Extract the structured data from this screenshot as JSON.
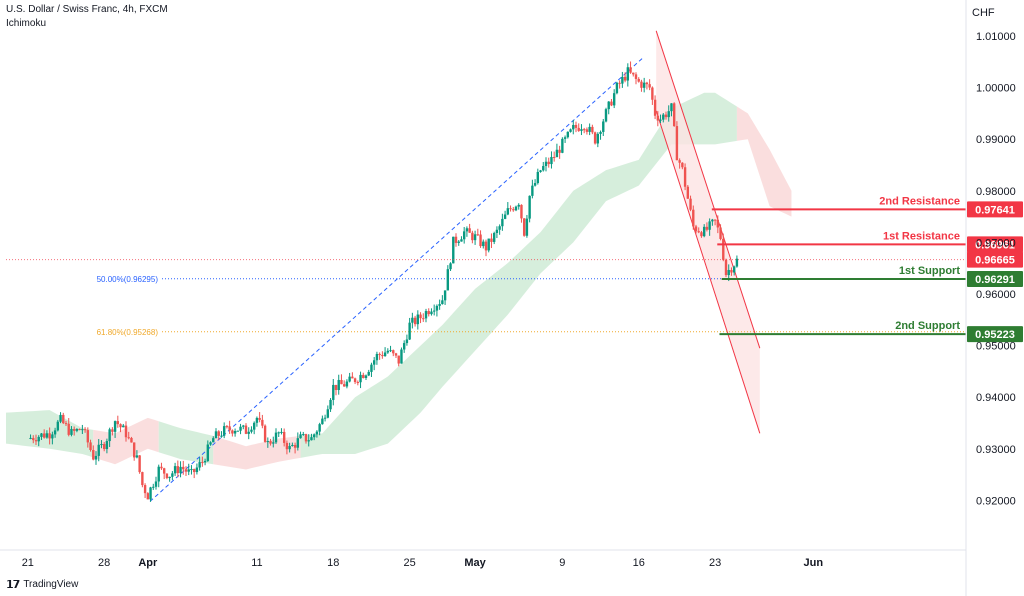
{
  "header": {
    "symbol_line": "U.S. Dollar / Swiss Franc, 4h, FXCM",
    "indicator": "Ichimoku"
  },
  "brand": {
    "logo_text": "TradingView",
    "logo_icon": "tradingview-logo-icon"
  },
  "colors": {
    "candle_up": "#26a69a",
    "candle_down": "#ef5350",
    "candle_up_bright": "#089981",
    "cloud_green": "#d1ecd8",
    "cloud_red": "#fadada",
    "resistance": "#f23645",
    "support": "#2e7d32",
    "fib_50": "#2962ff",
    "fib_618": "#f0a92b",
    "channel": "#f23645",
    "channel_fill": "#fde4e4",
    "trendline": "#2962ff"
  },
  "chart_data": {
    "type": "candlestick",
    "axis_currency": "CHF",
    "ylim": [
      0.912,
      1.016
    ],
    "y_ticks": [
      "1.01000",
      "1.00000",
      "0.99000",
      "0.98000",
      "0.97000",
      "0.96000",
      "0.95000",
      "0.94000",
      "0.93000",
      "0.92000"
    ],
    "y_tick_values": [
      1.01,
      1.0,
      0.99,
      0.98,
      0.97,
      0.96,
      0.95,
      0.94,
      0.93,
      0.92
    ],
    "x_range_days": [
      -2.0,
      86.0
    ],
    "x_ticks": [
      {
        "label": "21",
        "day": 0
      },
      {
        "label": "28",
        "day": 7
      },
      {
        "label": "Apr",
        "day": 11
      },
      {
        "label": "11",
        "day": 21
      },
      {
        "label": "18",
        "day": 28
      },
      {
        "label": "25",
        "day": 35
      },
      {
        "label": "May",
        "day": 41
      },
      {
        "label": "9",
        "day": 49
      },
      {
        "label": "16",
        "day": 56
      },
      {
        "label": "23",
        "day": 63
      },
      {
        "label": "Jun",
        "day": 72
      }
    ],
    "price_path": [
      [
        0,
        0.932
      ],
      [
        2,
        0.933
      ],
      [
        3,
        0.9355
      ],
      [
        4,
        0.933
      ],
      [
        5,
        0.934
      ],
      [
        6,
        0.9285
      ],
      [
        7,
        0.931
      ],
      [
        8,
        0.9355
      ],
      [
        9,
        0.933
      ],
      [
        10,
        0.928
      ],
      [
        10.5,
        0.923
      ],
      [
        11,
        0.921
      ],
      [
        12,
        0.926
      ],
      [
        13,
        0.925
      ],
      [
        14,
        0.9265
      ],
      [
        15,
        0.925
      ],
      [
        16,
        0.9275
      ],
      [
        17,
        0.932
      ],
      [
        18,
        0.9335
      ],
      [
        19,
        0.934
      ],
      [
        20,
        0.9335
      ],
      [
        21,
        0.936
      ],
      [
        22,
        0.931
      ],
      [
        23,
        0.933
      ],
      [
        24,
        0.93
      ],
      [
        25,
        0.932
      ],
      [
        26,
        0.932
      ],
      [
        27,
        0.9355
      ],
      [
        28,
        0.942
      ],
      [
        29,
        0.9425
      ],
      [
        30,
        0.9435
      ],
      [
        31,
        0.945
      ],
      [
        32,
        0.948
      ],
      [
        33,
        0.949
      ],
      [
        34,
        0.947
      ],
      [
        35,
        0.954
      ],
      [
        36,
        0.9555
      ],
      [
        37,
        0.9575
      ],
      [
        38,
        0.959
      ],
      [
        38.5,
        0.964
      ],
      [
        39,
        0.97
      ],
      [
        40,
        0.972
      ],
      [
        41,
        0.971
      ],
      [
        42,
        0.969
      ],
      [
        43,
        0.972
      ],
      [
        44,
        0.976
      ],
      [
        45,
        0.978
      ],
      [
        45.5,
        0.972
      ],
      [
        46,
        0.979
      ],
      [
        47,
        0.984
      ],
      [
        48,
        0.986
      ],
      [
        49,
        0.989
      ],
      [
        50,
        0.992
      ],
      [
        51,
        0.993
      ],
      [
        52,
        0.99
      ],
      [
        53,
        0.995
      ],
      [
        54,
        1.0
      ],
      [
        55,
        1.003
      ],
      [
        56,
        1.001
      ],
      [
        57,
        1.0
      ],
      [
        57.5,
        0.995
      ],
      [
        58,
        0.994
      ],
      [
        59,
        0.996
      ],
      [
        59.5,
        0.987
      ],
      [
        60,
        0.984
      ],
      [
        61,
        0.973
      ],
      [
        62,
        0.972
      ],
      [
        63,
        0.974
      ],
      [
        63.5,
        0.971
      ],
      [
        64,
        0.964
      ],
      [
        65,
        0.9665
      ]
    ],
    "ichimoku_cloud": {
      "upper": [
        [
          -2,
          0.937
        ],
        [
          2,
          0.9375
        ],
        [
          5,
          0.934
        ],
        [
          8,
          0.933
        ],
        [
          11,
          0.936
        ],
        [
          14,
          0.934
        ],
        [
          17,
          0.9325
        ],
        [
          20,
          0.9305
        ],
        [
          23,
          0.932
        ],
        [
          27,
          0.933
        ],
        [
          30,
          0.94
        ],
        [
          33,
          0.944
        ],
        [
          36,
          0.95
        ],
        [
          38,
          0.954
        ],
        [
          41,
          0.961
        ],
        [
          44,
          0.966
        ],
        [
          47,
          0.972
        ],
        [
          50,
          0.98
        ],
        [
          53,
          0.984
        ],
        [
          56,
          0.986
        ],
        [
          59,
          0.996
        ],
        [
          62,
          0.999
        ],
        [
          63,
          0.999
        ],
        [
          66,
          0.995
        ],
        [
          68,
          0.988
        ],
        [
          70,
          0.98
        ]
      ],
      "lower": [
        [
          -2,
          0.931
        ],
        [
          2,
          0.93
        ],
        [
          5,
          0.929
        ],
        [
          8,
          0.927
        ],
        [
          11,
          0.93
        ],
        [
          14,
          0.928
        ],
        [
          17,
          0.927
        ],
        [
          20,
          0.926
        ],
        [
          23,
          0.9275
        ],
        [
          27,
          0.929
        ],
        [
          30,
          0.929
        ],
        [
          33,
          0.931
        ],
        [
          36,
          0.937
        ],
        [
          38,
          0.942
        ],
        [
          41,
          0.949
        ],
        [
          44,
          0.956
        ],
        [
          47,
          0.964
        ],
        [
          50,
          0.97
        ],
        [
          53,
          0.978
        ],
        [
          56,
          0.981
        ],
        [
          59,
          0.989
        ],
        [
          62,
          0.989
        ],
        [
          63,
          0.989
        ],
        [
          66,
          0.99
        ],
        [
          68,
          0.977
        ],
        [
          70,
          0.975
        ]
      ],
      "red_segments": [
        [
          6,
          12
        ],
        [
          17,
          25
        ],
        [
          65,
          70
        ]
      ]
    },
    "levels": [
      {
        "name": "2nd Resistance",
        "value": 0.97641,
        "value_label": "0.97641",
        "kind": "resistance",
        "x_from_day": 62.7
      },
      {
        "name": "1st Resistance",
        "value": 0.96961,
        "value_label": "0.96961",
        "kind": "resistance",
        "x_from_day": 63.2
      },
      {
        "name": "current",
        "value": 0.96665,
        "value_label": "0.96665",
        "kind": "current",
        "x_from_day": -2
      },
      {
        "name": "1st Support",
        "value": 0.96291,
        "value_label": "0.96291",
        "kind": "support",
        "x_from_day": 63.6
      },
      {
        "name": "2nd Support",
        "value": 0.95223,
        "value_label": "0.95223",
        "kind": "support",
        "x_from_day": 63.4
      }
    ],
    "fibonacci": [
      {
        "label": "50.00%(0.96295)",
        "value": 0.96295,
        "kind": "fib50"
      },
      {
        "label": "61.80%(0.95268)",
        "value": 0.95268,
        "kind": "fib618"
      }
    ],
    "trendline": {
      "from": [
        11.2,
        0.9198
      ],
      "to": [
        56.4,
        1.0058
      ]
    },
    "descending_channel": {
      "upper_from": [
        57.6,
        1.011
      ],
      "upper_to": [
        67.1,
        0.9495
      ],
      "lower_from": [
        57.6,
        0.9955
      ],
      "lower_to": [
        67.1,
        0.933
      ]
    }
  }
}
